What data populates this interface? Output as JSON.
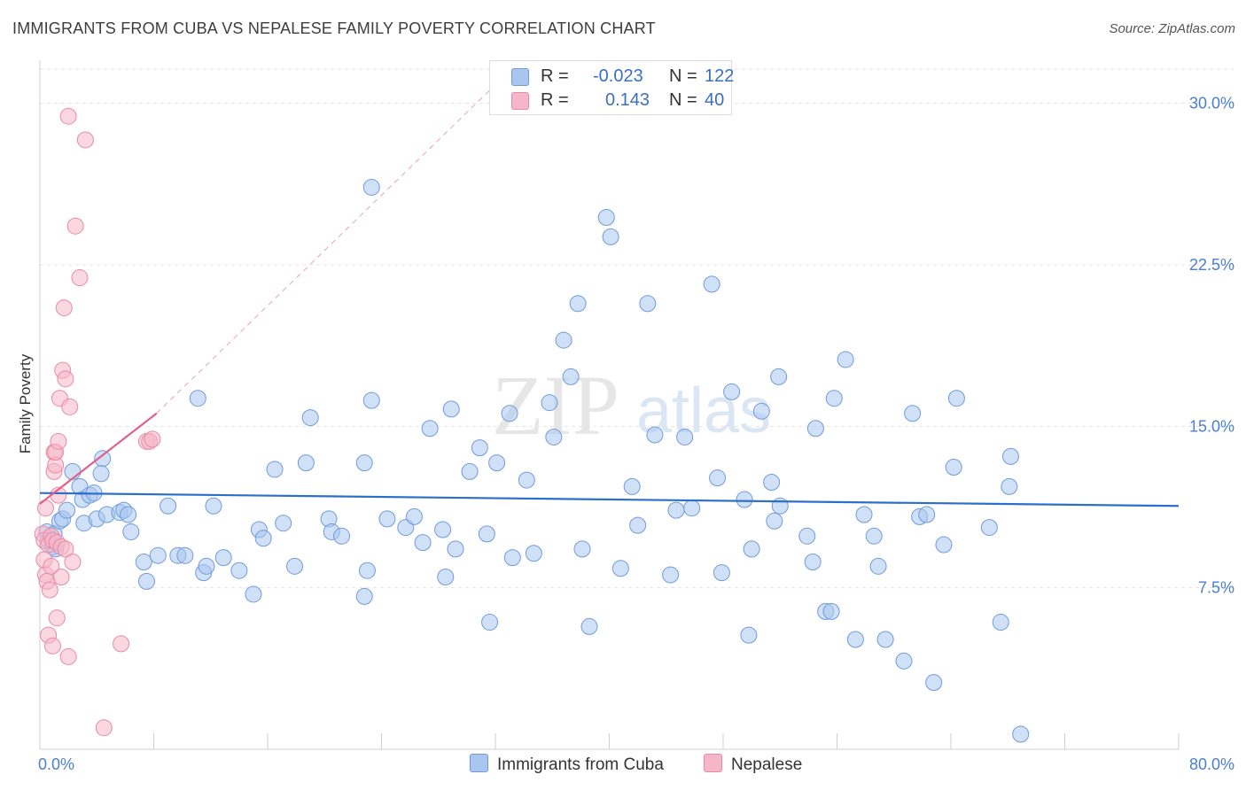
{
  "title": "IMMIGRANTS FROM CUBA VS NEPALESE FAMILY POVERTY CORRELATION CHART",
  "source": "Source: ZipAtlas.com",
  "watermark": {
    "zip": "ZIP",
    "atlas": "atlas"
  },
  "legend": {
    "r_label": "R =",
    "n_label": "N =",
    "cuba": {
      "r": "-0.023",
      "n": "122"
    },
    "nepalese": {
      "r": "0.143",
      "n": "40"
    }
  },
  "bottom_legend": {
    "cuba": "Immigrants from Cuba",
    "nepalese": "Nepalese"
  },
  "colors": {
    "cuba_fill": "#a9c6f0",
    "cuba_stroke": "#6f9bdc",
    "cuba_line": "#2c6fc9",
    "nepalese_fill": "#f6b6c9",
    "nepalese_stroke": "#e88aa6",
    "nepalese_line": "#e0608a",
    "axis_text": "#4a7fd0",
    "grid": "#e2e2e2"
  },
  "chart_data": {
    "type": "scatter",
    "title": "IMMIGRANTS FROM CUBA VS NEPALESE FAMILY POVERTY CORRELATION CHART",
    "xlabel": "",
    "ylabel": "Family Poverty",
    "xlim": [
      0,
      80
    ],
    "ylim": [
      0,
      32
    ],
    "x_tick_labels": [
      "0.0%",
      "80.0%"
    ],
    "y_ticks": [
      7.5,
      15.0,
      22.5,
      30.0
    ],
    "y_tick_labels": [
      "7.5%",
      "15.0%",
      "22.5%",
      "30.0%"
    ],
    "series": [
      {
        "name": "Immigrants from Cuba",
        "trend": {
          "x0": 0,
          "y0": 11.9,
          "x1": 80,
          "y1": 11.3
        },
        "points": [
          [
            0.5,
            10.1
          ],
          [
            0.6,
            9.7
          ],
          [
            0.9,
            9.4
          ],
          [
            1.0,
            10.0
          ],
          [
            1.1,
            9.3
          ],
          [
            1.4,
            10.6
          ],
          [
            1.6,
            10.7
          ],
          [
            1.9,
            11.1
          ],
          [
            2.3,
            12.9
          ],
          [
            2.8,
            12.2
          ],
          [
            3.0,
            11.6
          ],
          [
            3.1,
            10.5
          ],
          [
            3.5,
            11.8
          ],
          [
            3.8,
            11.9
          ],
          [
            4.0,
            10.7
          ],
          [
            4.4,
            13.5
          ],
          [
            4.3,
            12.8
          ],
          [
            4.7,
            10.9
          ],
          [
            5.6,
            11.0
          ],
          [
            5.9,
            11.1
          ],
          [
            6.2,
            10.9
          ],
          [
            6.4,
            10.1
          ],
          [
            7.3,
            8.7
          ],
          [
            7.5,
            7.8
          ],
          [
            8.3,
            9.0
          ],
          [
            9.0,
            11.3
          ],
          [
            9.7,
            9.0
          ],
          [
            10.2,
            9.0
          ],
          [
            11.1,
            16.3
          ],
          [
            11.5,
            8.2
          ],
          [
            11.7,
            8.5
          ],
          [
            12.2,
            11.3
          ],
          [
            12.9,
            8.9
          ],
          [
            14.0,
            8.3
          ],
          [
            15.0,
            7.2
          ],
          [
            15.4,
            10.2
          ],
          [
            15.7,
            9.8
          ],
          [
            16.5,
            13.0
          ],
          [
            17.1,
            10.5
          ],
          [
            17.9,
            8.5
          ],
          [
            18.7,
            13.3
          ],
          [
            19.0,
            15.4
          ],
          [
            20.3,
            10.7
          ],
          [
            20.5,
            10.1
          ],
          [
            21.2,
            9.9
          ],
          [
            22.8,
            7.1
          ],
          [
            23.0,
            8.3
          ],
          [
            23.3,
            26.1
          ],
          [
            23.3,
            16.2
          ],
          [
            22.8,
            13.3
          ],
          [
            24.4,
            10.7
          ],
          [
            25.7,
            10.3
          ],
          [
            26.3,
            10.8
          ],
          [
            26.9,
            9.6
          ],
          [
            27.4,
            14.9
          ],
          [
            28.3,
            10.2
          ],
          [
            28.5,
            8.0
          ],
          [
            28.9,
            15.8
          ],
          [
            29.2,
            9.3
          ],
          [
            30.2,
            12.9
          ],
          [
            30.9,
            14.0
          ],
          [
            31.4,
            10.0
          ],
          [
            31.6,
            5.9
          ],
          [
            32.1,
            13.3
          ],
          [
            33.0,
            15.6
          ],
          [
            33.2,
            8.9
          ],
          [
            34.2,
            12.5
          ],
          [
            34.7,
            9.1
          ],
          [
            35.8,
            16.1
          ],
          [
            36.1,
            14.5
          ],
          [
            36.8,
            19.0
          ],
          [
            37.3,
            17.3
          ],
          [
            37.8,
            20.7
          ],
          [
            38.1,
            9.3
          ],
          [
            38.6,
            5.7
          ],
          [
            39.8,
            24.7
          ],
          [
            40.1,
            23.8
          ],
          [
            40.8,
            8.4
          ],
          [
            41.6,
            12.2
          ],
          [
            42.0,
            10.4
          ],
          [
            42.7,
            20.7
          ],
          [
            43.2,
            14.6
          ],
          [
            44.3,
            8.1
          ],
          [
            44.7,
            11.1
          ],
          [
            45.3,
            14.5
          ],
          [
            45.8,
            11.2
          ],
          [
            47.2,
            21.6
          ],
          [
            47.6,
            12.6
          ],
          [
            47.9,
            8.2
          ],
          [
            48.6,
            16.6
          ],
          [
            49.5,
            11.6
          ],
          [
            49.8,
            5.3
          ],
          [
            50.0,
            9.3
          ],
          [
            50.7,
            15.7
          ],
          [
            51.9,
            17.3
          ],
          [
            51.4,
            12.4
          ],
          [
            51.6,
            10.6
          ],
          [
            52.0,
            11.3
          ],
          [
            53.9,
            9.9
          ],
          [
            54.3,
            8.7
          ],
          [
            54.5,
            14.9
          ],
          [
            55.2,
            6.4
          ],
          [
            55.8,
            16.3
          ],
          [
            55.6,
            6.4
          ],
          [
            56.6,
            18.1
          ],
          [
            57.3,
            5.1
          ],
          [
            57.9,
            10.9
          ],
          [
            58.6,
            9.9
          ],
          [
            58.9,
            8.5
          ],
          [
            59.4,
            5.1
          ],
          [
            60.7,
            4.1
          ],
          [
            61.3,
            15.6
          ],
          [
            61.8,
            10.8
          ],
          [
            62.3,
            10.9
          ],
          [
            62.8,
            3.1
          ],
          [
            63.5,
            9.5
          ],
          [
            64.2,
            13.1
          ],
          [
            64.4,
            16.3
          ],
          [
            66.7,
            10.3
          ],
          [
            67.5,
            5.9
          ],
          [
            68.1,
            12.2
          ],
          [
            68.2,
            13.6
          ],
          [
            68.9,
            0.7
          ]
        ]
      },
      {
        "name": "Nepalese",
        "trend": {
          "x0": 0,
          "y0": 11.4,
          "x1": 8.2,
          "y1": 15.6
        },
        "extension": {
          "x0": 8.2,
          "y0": 15.6,
          "x1": 33,
          "y1": 31.5
        },
        "points": [
          [
            0.2,
            10.0
          ],
          [
            0.3,
            9.7
          ],
          [
            0.3,
            8.8
          ],
          [
            0.4,
            11.2
          ],
          [
            0.4,
            8.1
          ],
          [
            0.5,
            7.8
          ],
          [
            0.6,
            9.5
          ],
          [
            0.6,
            5.3
          ],
          [
            0.7,
            7.4
          ],
          [
            0.8,
            9.9
          ],
          [
            0.8,
            8.5
          ],
          [
            0.9,
            4.8
          ],
          [
            0.9,
            9.7
          ],
          [
            1.0,
            12.9
          ],
          [
            1.0,
            13.8
          ],
          [
            1.1,
            13.2
          ],
          [
            1.1,
            13.8
          ],
          [
            1.2,
            9.6
          ],
          [
            1.2,
            6.1
          ],
          [
            1.3,
            11.8
          ],
          [
            1.3,
            14.3
          ],
          [
            1.4,
            16.3
          ],
          [
            1.5,
            9.4
          ],
          [
            1.5,
            8.0
          ],
          [
            1.6,
            17.6
          ],
          [
            1.7,
            20.5
          ],
          [
            1.8,
            17.2
          ],
          [
            1.8,
            9.3
          ],
          [
            2.0,
            4.3
          ],
          [
            2.0,
            29.4
          ],
          [
            2.1,
            15.9
          ],
          [
            2.3,
            8.7
          ],
          [
            2.5,
            24.3
          ],
          [
            2.8,
            21.9
          ],
          [
            3.2,
            28.3
          ],
          [
            4.5,
            1.0
          ],
          [
            5.7,
            4.9
          ],
          [
            7.5,
            14.3
          ],
          [
            7.7,
            14.3
          ],
          [
            7.9,
            14.4
          ]
        ]
      }
    ]
  }
}
